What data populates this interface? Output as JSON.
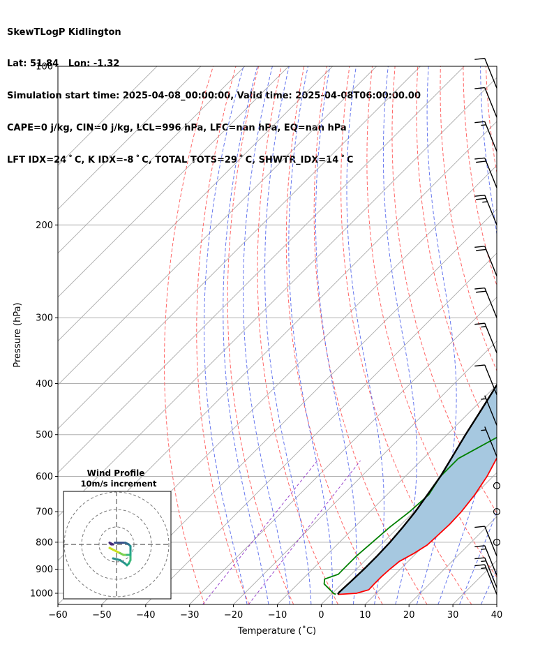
{
  "header": {
    "lines": [
      "SkewTLogP Kidlington",
      "Lat: 51.84   Lon: -1.32",
      "Simulation start time: 2025-04-08_00:00:00, Valid time: 2025-04-08T06:00:00.00",
      "CAPE=0 j/kg, CIN=0 j/kg, LCL=996 hPa, LFC=nan hPa, EQ=nan hPa",
      "LFT IDX=24$^\\circ$C, K IDX=-8$^\\circ$C, TOTAL TOTS=29$^\\circ$C, SHWTR_IDX=14$^\\circ$C"
    ],
    "lines_display": [
      "SkewTLogP Kidlington",
      "Lat: 51.84   Lon: -1.32",
      "Simulation start time: 2025-04-08_00:00:00, Valid time: 2025-04-08T06:00:00.00",
      "CAPE=0 j/kg, CIN=0 j/kg, LCL=996 hPa, LFC=nan hPa, EQ=nan hPa",
      "LFT IDX=24 ˚ C, K IDX=-8 ˚ C, TOTAL TOTS=29 ˚ C, SHWTR_IDX=14 ˚ C"
    ]
  },
  "chart_data": {
    "type": "line",
    "chart_kind": "skew-T log-P diagram",
    "xlabel": "Temperature (˚C)",
    "ylabel": "Pressure (hPa)",
    "xlim": [
      -60,
      40
    ],
    "ylim": [
      1050,
      100
    ],
    "y_scale": "log",
    "x_ticks": [
      -60,
      -50,
      -40,
      -30,
      -20,
      -10,
      0,
      10,
      20,
      30,
      40
    ],
    "x_tick_labels": [
      "−60",
      "−50",
      "−40",
      "−30",
      "−20",
      "−10",
      "0",
      "10",
      "20",
      "30",
      "40"
    ],
    "y_ticks": [
      1000,
      900,
      800,
      700,
      600,
      500,
      400,
      300,
      200,
      100
    ],
    "y_tick_labels": [
      "1000",
      "900",
      "800",
      "700",
      "600",
      "500",
      "400",
      "300",
      "200",
      "100"
    ],
    "grid": true,
    "colors": {
      "temperature": "#ff0000",
      "dewpoint": "#008000",
      "parcel": "#000000",
      "shade": "#a6c8e0",
      "dry_adiabat": "#ff6666",
      "moist_adiabat": "#6677ee",
      "isotherm": "#aaaaaa",
      "mixing_ratio": "#9944cc"
    },
    "series": [
      {
        "key": "temperature",
        "points": [
          [
            1005,
            1.5
          ],
          [
            1000,
            5.5
          ],
          [
            985,
            7.5
          ],
          [
            960,
            7.4
          ],
          [
            930,
            7.4
          ],
          [
            900,
            7.6
          ],
          [
            870,
            8.0
          ],
          [
            840,
            9.5
          ],
          [
            810,
            10.6
          ],
          [
            780,
            10.8
          ],
          [
            740,
            11.0
          ],
          [
            700,
            10.8
          ],
          [
            650,
            10.0
          ],
          [
            600,
            8.6
          ],
          [
            550,
            6.5
          ],
          [
            500,
            3.5
          ],
          [
            450,
            0.0
          ],
          [
            400,
            -2.5
          ],
          [
            350,
            -4.5
          ],
          [
            300,
            -6.5
          ],
          [
            280,
            -7.5
          ],
          [
            260,
            -8.5
          ],
          [
            240,
            -7.0
          ],
          [
            220,
            -5.5
          ],
          [
            200,
            -5.0
          ],
          [
            185,
            -5.5
          ],
          [
            170,
            -5.5
          ],
          [
            155,
            -5.0
          ],
          [
            140,
            -4.0
          ],
          [
            125,
            -3.0
          ],
          [
            110,
            -1.5
          ],
          [
            100,
            -0.5
          ]
        ]
      },
      {
        "key": "dewpoint",
        "points": [
          [
            1005,
            1.0
          ],
          [
            1000,
            0.2
          ],
          [
            990,
            -0.8
          ],
          [
            960,
            -4.0
          ],
          [
            940,
            -5.0
          ],
          [
            920,
            -3.0
          ],
          [
            890,
            -3.0
          ],
          [
            850,
            -3.0
          ],
          [
            800,
            -2.5
          ],
          [
            750,
            -2.0
          ],
          [
            700,
            -1.0
          ],
          [
            650,
            -0.5
          ],
          [
            600,
            -2.0
          ],
          [
            555,
            -2.0
          ],
          [
            500,
            2.5
          ],
          [
            450,
            6.0
          ],
          [
            420,
            6.0
          ],
          [
            400,
            2.5
          ],
          [
            380,
            -0.5
          ],
          [
            360,
            -4.0
          ],
          [
            340,
            -2.0
          ],
          [
            310,
            0.0
          ],
          [
            290,
            -2.0
          ],
          [
            270,
            -5.0
          ],
          [
            250,
            -7.0
          ],
          [
            230,
            -8.0
          ],
          [
            210,
            -10.0
          ],
          [
            190,
            -13.5
          ],
          [
            175,
            -16.0
          ],
          [
            160,
            -16.5
          ],
          [
            145,
            -12.0
          ],
          [
            130,
            -9.0
          ],
          [
            120,
            -6.0
          ],
          [
            110,
            -3.0
          ],
          [
            100,
            -0.5
          ]
        ]
      },
      {
        "key": "parcel",
        "points": [
          [
            1005,
            1.5
          ],
          [
            996,
            1.3
          ],
          [
            950,
            1.5
          ],
          [
            900,
            1.7
          ],
          [
            850,
            1.7
          ],
          [
            800,
            1.5
          ],
          [
            750,
            1.0
          ],
          [
            700,
            0.3
          ],
          [
            650,
            -0.8
          ],
          [
            600,
            -2.0
          ],
          [
            550,
            -3.8
          ],
          [
            500,
            -5.8
          ],
          [
            450,
            -7.8
          ],
          [
            400,
            -10.1
          ],
          [
            350,
            -12.8
          ],
          [
            300,
            -15.6
          ],
          [
            250,
            -19.0
          ],
          [
            200,
            -22.9
          ],
          [
            150,
            -27.7
          ],
          [
            120,
            -31.3
          ],
          [
            100,
            -34.5
          ]
        ]
      }
    ],
    "wind_barbs": [
      {
        "p": 1005,
        "flags": 0,
        "full": 1,
        "half": 1
      },
      {
        "p": 975,
        "flags": 0,
        "full": 1,
        "half": 1
      },
      {
        "p": 925,
        "flags": 0,
        "full": 1,
        "half": 1
      },
      {
        "p": 850,
        "flags": 0,
        "full": 1,
        "half": 0
      },
      {
        "p": 800,
        "calm": true
      },
      {
        "p": 700,
        "calm": true
      },
      {
        "p": 625,
        "calm": true
      },
      {
        "p": 550,
        "flags": 0,
        "full": 0,
        "half": 1
      },
      {
        "p": 480,
        "flags": 0,
        "full": 0,
        "half": 1
      },
      {
        "p": 420,
        "flags": 0,
        "full": 1,
        "half": 0
      },
      {
        "p": 350,
        "flags": 0,
        "full": 1,
        "half": 1
      },
      {
        "p": 300,
        "flags": 0,
        "full": 2,
        "half": 0
      },
      {
        "p": 250,
        "flags": 0,
        "full": 2,
        "half": 0
      },
      {
        "p": 200,
        "flags": 0,
        "full": 2,
        "half": 1
      },
      {
        "p": 170,
        "flags": 0,
        "full": 2,
        "half": 0
      },
      {
        "p": 145,
        "flags": 0,
        "full": 1,
        "half": 1
      },
      {
        "p": 125,
        "flags": 0,
        "full": 1,
        "half": 0
      },
      {
        "p": 110,
        "flags": 0,
        "full": 1,
        "half": 0
      }
    ],
    "inset": {
      "title": "Wind Profile",
      "subtitle": "10m/s increment",
      "rings_ms": [
        10,
        20,
        30
      ],
      "hodograph_ms": [
        [
          -2,
          -8
        ],
        [
          2,
          -9
        ],
        [
          5,
          -11
        ],
        [
          6,
          -12
        ],
        [
          7,
          -11
        ],
        [
          8,
          -9
        ],
        [
          8,
          -6
        ],
        [
          6,
          -6
        ],
        [
          4,
          -6
        ],
        [
          2,
          -5
        ],
        [
          0,
          -4
        ],
        [
          -2,
          -3
        ],
        [
          -4,
          -2
        ]
      ],
      "hodograph_upper_ms": [
        [
          -1,
          1
        ],
        [
          2,
          1
        ],
        [
          5,
          1
        ],
        [
          7,
          0
        ],
        [
          8,
          -1
        ],
        [
          8,
          -4
        ],
        [
          8,
          -6
        ]
      ],
      "hodograph_top_ms": [
        [
          -2,
          0
        ],
        [
          -3,
          0
        ],
        [
          -4,
          1
        ],
        [
          -2,
          0
        ]
      ]
    }
  }
}
